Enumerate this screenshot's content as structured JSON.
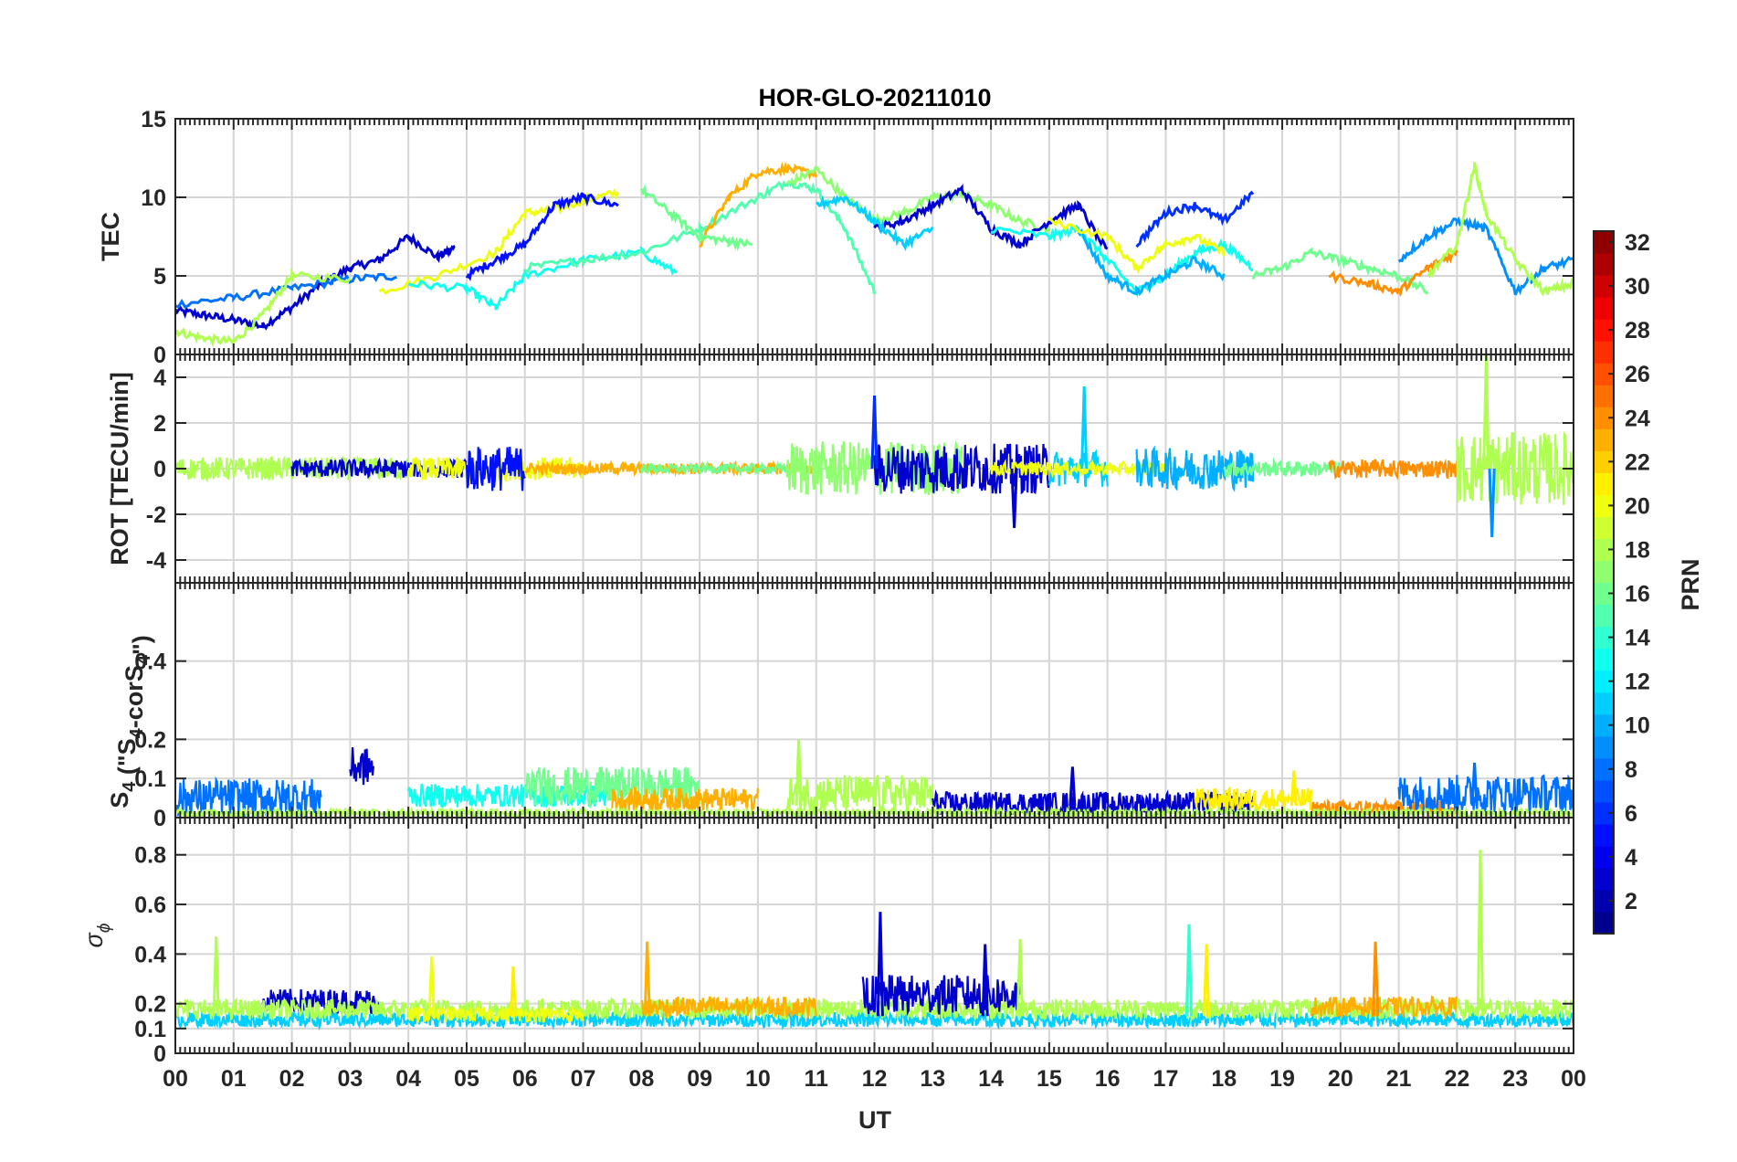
{
  "chart_data": [
    {
      "type": "line",
      "id": "tec",
      "title": "HOR-GLO-20211010",
      "ylabel": "TEC",
      "ylim": [
        0,
        15
      ],
      "yticks": [
        0,
        5,
        10,
        15
      ],
      "xlim": [
        0,
        24
      ],
      "grid": true,
      "series": [
        {
          "prn": 3,
          "x": [
            0.0,
            0.5,
            1.0,
            1.5,
            2.0,
            2.5,
            3.0,
            3.5,
            4.0,
            4.5,
            4.8
          ],
          "y": [
            2.8,
            2.5,
            2.2,
            1.8,
            3.0,
            4.5,
            5.5,
            6.0,
            7.5,
            6.2,
            6.8
          ]
        },
        {
          "prn": 8,
          "x": [
            0.0,
            1.0,
            2.0,
            3.0,
            3.8
          ],
          "y": [
            3.2,
            3.6,
            4.2,
            4.8,
            5.0
          ]
        },
        {
          "prn": 18,
          "x": [
            0.0,
            0.5,
            1.0,
            1.5,
            2.0,
            3.0
          ],
          "y": [
            1.5,
            1.0,
            0.8,
            2.5,
            5.0,
            4.8
          ]
        },
        {
          "prn": 20,
          "x": [
            3.5,
            4.5,
            5.5,
            6.0,
            6.5,
            7.0,
            7.6
          ],
          "y": [
            4.0,
            5.0,
            6.5,
            9.0,
            9.2,
            9.8,
            10.3
          ]
        },
        {
          "prn": 5,
          "x": [
            5.0,
            5.5,
            6.0,
            6.5,
            7.0,
            7.6
          ],
          "y": [
            5.0,
            6.0,
            7.0,
            9.5,
            10.0,
            9.5
          ]
        },
        {
          "prn": 13,
          "x": [
            4.0,
            5.0,
            5.5,
            6.0,
            7.0,
            8.0,
            8.6
          ],
          "y": [
            4.5,
            4.2,
            3.0,
            5.0,
            6.0,
            6.5,
            5.2
          ]
        },
        {
          "prn": 15,
          "x": [
            6.0,
            7.0,
            8.0,
            9.0,
            10.0,
            10.5,
            11.0,
            11.5,
            12.0
          ],
          "y": [
            5.5,
            6.0,
            6.5,
            8.0,
            10.0,
            11.0,
            10.5,
            8.0,
            4.0
          ]
        },
        {
          "prn": 23,
          "x": [
            9.0,
            9.5,
            10.0,
            10.5,
            11.0
          ],
          "y": [
            7.0,
            10.0,
            11.6,
            11.8,
            11.5
          ]
        },
        {
          "prn": 16,
          "x": [
            8.0,
            8.5,
            9.0,
            9.5,
            9.9
          ],
          "y": [
            10.5,
            9.0,
            7.5,
            7.2,
            7.0
          ]
        },
        {
          "prn": 17,
          "x": [
            10.5,
            11.0,
            11.5,
            12.0,
            12.5,
            13.0,
            13.5,
            14.0,
            14.5,
            15.0
          ],
          "y": [
            10.8,
            11.8,
            10.0,
            8.5,
            9.0,
            10.0,
            10.2,
            9.5,
            8.5,
            8.0
          ]
        },
        {
          "prn": 3,
          "x": [
            12.0,
            12.5,
            13.0,
            13.5,
            14.0,
            14.5,
            15.0,
            15.5,
            16.0
          ],
          "y": [
            8.0,
            8.5,
            9.5,
            10.5,
            8.0,
            7.0,
            8.5,
            9.5,
            6.5
          ]
        },
        {
          "prn": 11,
          "x": [
            11.0,
            11.5,
            12.0,
            12.5,
            13.0
          ],
          "y": [
            9.5,
            10.0,
            8.5,
            7.0,
            8.0
          ]
        },
        {
          "prn": 13,
          "x": [
            14.0,
            15.0,
            15.5,
            16.0,
            16.5,
            17.0,
            17.5,
            18.0,
            18.5
          ],
          "y": [
            8.0,
            7.5,
            8.0,
            6.0,
            4.0,
            5.0,
            6.5,
            7.0,
            5.5
          ]
        },
        {
          "prn": 10,
          "x": [
            15.5,
            16.0,
            16.5,
            17.0,
            17.5,
            18.0
          ],
          "y": [
            8.0,
            5.0,
            4.0,
            5.0,
            6.0,
            5.0
          ]
        },
        {
          "prn": 6,
          "x": [
            16.5,
            17.0,
            17.5,
            18.0,
            18.5
          ],
          "y": [
            7.0,
            9.0,
            9.5,
            8.5,
            10.3
          ]
        },
        {
          "prn": 20,
          "x": [
            15.0,
            16.0,
            16.5,
            17.0,
            17.5,
            18.0
          ],
          "y": [
            8.5,
            7.5,
            5.5,
            7.0,
            7.5,
            6.5
          ]
        },
        {
          "prn": 16,
          "x": [
            18.5,
            19.0,
            19.5,
            20.0,
            20.5,
            21.0,
            21.5
          ],
          "y": [
            5.0,
            5.5,
            6.5,
            6.0,
            5.5,
            5.0,
            4.0
          ]
        },
        {
          "prn": 24,
          "x": [
            19.8,
            20.5,
            21.0,
            21.5,
            22.0
          ],
          "y": [
            5.0,
            4.5,
            4.0,
            5.5,
            6.5
          ]
        },
        {
          "prn": 9,
          "x": [
            21.0,
            21.5,
            22.0,
            22.5,
            23.0,
            23.5,
            24.0
          ],
          "y": [
            6.0,
            7.5,
            8.5,
            8.0,
            4.0,
            5.5,
            6.0
          ]
        },
        {
          "prn": 18,
          "x": [
            21.5,
            22.0,
            22.3,
            22.5,
            23.0,
            23.5,
            24.0
          ],
          "y": [
            5.0,
            7.0,
            12.0,
            9.0,
            6.0,
            4.0,
            4.5
          ]
        }
      ]
    },
    {
      "type": "line",
      "id": "rot",
      "ylabel": "ROT [TECU/min]",
      "ylim": [
        -5,
        5
      ],
      "yticks": [
        -4,
        -2,
        0,
        2,
        4
      ],
      "xlim": [
        0,
        24
      ],
      "grid": true,
      "bursts": [
        {
          "prn": 18,
          "t0": 0.0,
          "t1": 4.0,
          "amp": 0.5
        },
        {
          "prn": 3,
          "t0": 2.0,
          "t1": 5.0,
          "amp": 0.4
        },
        {
          "prn": 20,
          "t0": 4.0,
          "t1": 7.0,
          "amp": 0.5
        },
        {
          "prn": 5,
          "t0": 5.0,
          "t1": 6.0,
          "amp": 1.0
        },
        {
          "prn": 23,
          "t0": 6.0,
          "t1": 11.0,
          "amp": 0.25
        },
        {
          "prn": 16,
          "t0": 8.0,
          "t1": 10.5,
          "amp": 0.2
        },
        {
          "prn": 17,
          "t0": 10.5,
          "t1": 13.5,
          "amp": 1.2
        },
        {
          "prn": 3,
          "t0": 12.0,
          "t1": 15.0,
          "amp": 1.1
        },
        {
          "prn": 11,
          "t0": 15.0,
          "t1": 16.0,
          "amp": 0.8
        },
        {
          "prn": 20,
          "t0": 14.0,
          "t1": 17.0,
          "amp": 0.3
        },
        {
          "prn": 10,
          "t0": 16.5,
          "t1": 18.5,
          "amp": 0.9
        },
        {
          "prn": 16,
          "t0": 18.0,
          "t1": 20.0,
          "amp": 0.35
        },
        {
          "prn": 24,
          "t0": 19.8,
          "t1": 22.0,
          "amp": 0.4
        },
        {
          "prn": 18,
          "t0": 22.0,
          "t1": 24.0,
          "amp": 1.6
        }
      ],
      "spikes": [
        {
          "prn": 6,
          "x": 12.0,
          "y": 3.2
        },
        {
          "prn": 11,
          "x": 15.6,
          "y": 3.6
        },
        {
          "prn": 18,
          "x": 22.5,
          "y": 5.0
        },
        {
          "prn": 9,
          "x": 22.6,
          "y": -3.0
        },
        {
          "prn": 3,
          "x": 14.4,
          "y": -2.6
        }
      ]
    },
    {
      "type": "line",
      "id": "s4",
      "ylabel": "S4 (\"S4-corS4\")",
      "ylim": [
        0,
        0.6
      ],
      "yticks": [
        0,
        0.1,
        0.2,
        0.4
      ],
      "xlim": [
        0,
        24
      ],
      "grid": true,
      "bursts": [
        {
          "prn": 8,
          "t0": 0.0,
          "t1": 2.5,
          "amp": 0.05,
          "base": 0.04
        },
        {
          "prn": 3,
          "t0": 3.0,
          "t1": 3.4,
          "amp": 0.05,
          "base": 0.12
        },
        {
          "prn": 13,
          "t0": 4.0,
          "t1": 7.5,
          "amp": 0.03,
          "base": 0.05
        },
        {
          "prn": 16,
          "t0": 6.0,
          "t1": 9.0,
          "amp": 0.05,
          "base": 0.07
        },
        {
          "prn": 23,
          "t0": 7.5,
          "t1": 10.0,
          "amp": 0.03,
          "base": 0.04
        },
        {
          "prn": 18,
          "t0": 10.5,
          "t1": 13.0,
          "amp": 0.05,
          "base": 0.05
        },
        {
          "prn": 3,
          "t0": 13.0,
          "t1": 18.5,
          "amp": 0.03,
          "base": 0.03
        },
        {
          "prn": 21,
          "t0": 17.5,
          "t1": 19.5,
          "amp": 0.03,
          "base": 0.04
        },
        {
          "prn": 24,
          "t0": 19.5,
          "t1": 22.0,
          "amp": 0.02,
          "base": 0.02
        },
        {
          "prn": 8,
          "t0": 21.0,
          "t1": 24.0,
          "amp": 0.05,
          "base": 0.05
        },
        {
          "prn": 18,
          "t0": 0.0,
          "t1": 24.0,
          "amp": 0.01,
          "base": 0.01
        }
      ],
      "spikes": [
        {
          "prn": 18,
          "x": 10.7,
          "y": 0.2
        },
        {
          "prn": 3,
          "x": 15.4,
          "y": 0.13
        },
        {
          "prn": 21,
          "x": 19.2,
          "y": 0.12
        },
        {
          "prn": 8,
          "x": 22.3,
          "y": 0.14
        }
      ]
    },
    {
      "type": "line",
      "id": "sigma_phi",
      "ylabel": "σ ϕ",
      "xlabel": "UT",
      "ylim": [
        0,
        0.95
      ],
      "yticks": [
        0,
        0.1,
        0.2,
        0.4,
        0.6,
        0.8
      ],
      "xlim": [
        0,
        24
      ],
      "xticks": [
        "00",
        "01",
        "02",
        "03",
        "04",
        "05",
        "06",
        "07",
        "08",
        "09",
        "10",
        "11",
        "12",
        "13",
        "14",
        "15",
        "16",
        "17",
        "18",
        "19",
        "20",
        "21",
        "22",
        "23",
        "00"
      ],
      "grid": true,
      "bursts": [
        {
          "prn": 11,
          "t0": 0.0,
          "t1": 24.0,
          "amp": 0.03,
          "base": 0.13
        },
        {
          "prn": 3,
          "t0": 1.5,
          "t1": 3.5,
          "amp": 0.05,
          "base": 0.2
        },
        {
          "prn": 18,
          "t0": 0.0,
          "t1": 24.0,
          "amp": 0.04,
          "base": 0.17
        },
        {
          "prn": 23,
          "t0": 8.0,
          "t1": 11.0,
          "amp": 0.04,
          "base": 0.18
        },
        {
          "prn": 23,
          "t0": 19.5,
          "t1": 22.0,
          "amp": 0.04,
          "base": 0.18
        },
        {
          "prn": 3,
          "t0": 11.8,
          "t1": 14.5,
          "amp": 0.08,
          "base": 0.22
        },
        {
          "prn": 20,
          "t0": 4.0,
          "t1": 7.0,
          "amp": 0.03,
          "base": 0.15
        }
      ],
      "spikes": [
        {
          "prn": 18,
          "x": 0.7,
          "y": 0.47
        },
        {
          "prn": 20,
          "x": 4.4,
          "y": 0.39
        },
        {
          "prn": 21,
          "x": 5.8,
          "y": 0.35
        },
        {
          "prn": 23,
          "x": 8.1,
          "y": 0.45
        },
        {
          "prn": 3,
          "x": 12.1,
          "y": 0.57
        },
        {
          "prn": 3,
          "x": 13.9,
          "y": 0.44
        },
        {
          "prn": 18,
          "x": 14.5,
          "y": 0.46
        },
        {
          "prn": 14,
          "x": 17.4,
          "y": 0.52
        },
        {
          "prn": 21,
          "x": 17.7,
          "y": 0.44
        },
        {
          "prn": 24,
          "x": 20.6,
          "y": 0.45
        },
        {
          "prn": 18,
          "x": 22.4,
          "y": 0.82
        }
      ]
    }
  ],
  "colorbar": {
    "label": "PRN",
    "range": [
      1,
      32
    ],
    "ticks": [
      2,
      4,
      6,
      8,
      10,
      12,
      14,
      16,
      18,
      20,
      22,
      24,
      26,
      28,
      30,
      32
    ],
    "colormap": "jet"
  }
}
